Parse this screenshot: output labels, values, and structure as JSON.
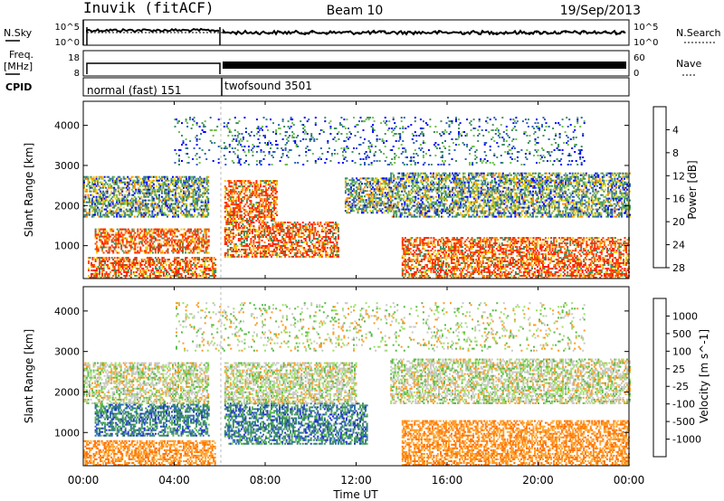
{
  "header": {
    "station": "Inuvik (fitACF)",
    "beam": "Beam 10",
    "date": "19/Sep/2013"
  },
  "noise_panel": {
    "left_label": "N.Sky",
    "left_ticks": [
      "10^5",
      "10^0"
    ],
    "right_label": "N.Search",
    "right_ticks": [
      "10^5",
      "10^0"
    ]
  },
  "freq_panel": {
    "left_label_line1": "Freq.",
    "left_label_line2": "[MHz]",
    "left_ticks": [
      "18",
      "8"
    ],
    "right_label": "Nave",
    "right_ticks": [
      "60",
      "0"
    ]
  },
  "cpid_panel": {
    "label": "CPID",
    "segments": [
      {
        "name": "normal (fast) 151",
        "start_hour": 0.0,
        "end_hour": 6.05
      },
      {
        "name": "twofsound 3501",
        "start_hour": 6.05,
        "end_hour": 24.0
      }
    ]
  },
  "x_axis": {
    "label": "Time UT",
    "ticks": [
      "00:00",
      "04:00",
      "08:00",
      "12:00",
      "16:00",
      "20:00",
      "00:00"
    ],
    "tick_hours": [
      0,
      4,
      8,
      12,
      16,
      20,
      24
    ],
    "range": [
      0,
      24
    ]
  },
  "chart_data": [
    {
      "type": "heatmap",
      "name": "power",
      "ylabel": "Slant Range [km]",
      "yticks": [
        1000,
        2000,
        3000,
        4000
      ],
      "ylim": [
        180,
        4600
      ],
      "colorbar": {
        "label": "Power [dB]",
        "ticks": [
          "4",
          "8",
          "12",
          "16",
          "20",
          "24",
          "28"
        ],
        "colors": [
          "#0000ff",
          "#2b5fb8",
          "#3d8f5f",
          "#6fc04a",
          "#f0d000",
          "#ff8a00",
          "#ff2000"
        ]
      },
      "regions": [
        {
          "t0": 0.2,
          "t1": 5.8,
          "r0": 180,
          "r1": 700,
          "class": "high"
        },
        {
          "t0": 0.5,
          "t1": 5.5,
          "r0": 800,
          "r1": 1400,
          "class": "high"
        },
        {
          "t0": 0.0,
          "t1": 5.5,
          "r0": 1700,
          "r1": 2700,
          "class": "mid"
        },
        {
          "t0": 6.2,
          "t1": 11.2,
          "r0": 700,
          "r1": 1600,
          "class": "high"
        },
        {
          "t0": 6.2,
          "t1": 8.5,
          "r0": 1600,
          "r1": 2600,
          "class": "high"
        },
        {
          "t0": 11.5,
          "t1": 13.5,
          "r0": 1800,
          "r1": 2700,
          "class": "mid"
        },
        {
          "t0": 13.5,
          "t1": 24.0,
          "r0": 1700,
          "r1": 2800,
          "class": "mid"
        },
        {
          "t0": 14.0,
          "t1": 24.0,
          "r0": 180,
          "r1": 1200,
          "class": "high"
        },
        {
          "t0": 4.0,
          "t1": 22.0,
          "r0": 3000,
          "r1": 4200,
          "class": "sparse"
        }
      ]
    },
    {
      "type": "heatmap",
      "name": "velocity",
      "ylabel": "Slant Range [km]",
      "yticks": [
        1000,
        2000,
        3000,
        4000
      ],
      "ylim": [
        180,
        4600
      ],
      "colorbar": {
        "label": "Velocity [m s^-1]",
        "ticks": [
          "1000",
          "500",
          "100",
          "25",
          "-25",
          "-100",
          "-500",
          "-1000"
        ],
        "colors": [
          "#2030d0",
          "#2c6fb0",
          "#3b8a66",
          "#58b848",
          "#9be060",
          "#c8c8c8",
          "#ff9a20",
          "#ff7000",
          "#ff2000"
        ]
      },
      "regions": [
        {
          "t0": 0.0,
          "t1": 5.8,
          "r0": 180,
          "r1": 800,
          "class": "neg"
        },
        {
          "t0": 0.5,
          "t1": 5.5,
          "r0": 900,
          "r1": 1700,
          "class": "pos"
        },
        {
          "t0": 0.0,
          "t1": 5.5,
          "r0": 1700,
          "r1": 2700,
          "class": "zero"
        },
        {
          "t0": 6.2,
          "t1": 12.5,
          "r0": 700,
          "r1": 1700,
          "class": "pos"
        },
        {
          "t0": 6.2,
          "t1": 12.0,
          "r0": 1700,
          "r1": 2700,
          "class": "zero"
        },
        {
          "t0": 13.5,
          "t1": 24.0,
          "r0": 1700,
          "r1": 2800,
          "class": "zero"
        },
        {
          "t0": 14.0,
          "t1": 24.0,
          "r0": 180,
          "r1": 1300,
          "class": "neg"
        },
        {
          "t0": 4.0,
          "t1": 22.0,
          "r0": 3000,
          "r1": 4200,
          "class": "sparse"
        }
      ]
    }
  ]
}
